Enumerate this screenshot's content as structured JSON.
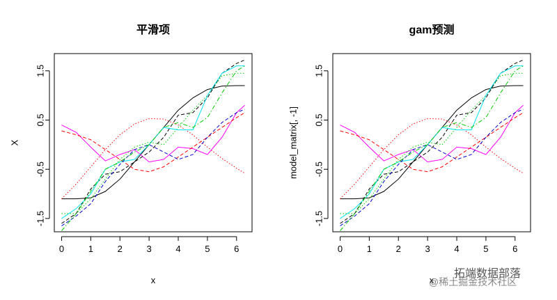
{
  "chart_data": [
    {
      "type": "line",
      "title": "平滑项",
      "xlabel": "x",
      "ylabel": "X",
      "x": [
        0,
        0.5,
        1,
        1.5,
        2,
        2.5,
        3,
        3.5,
        4,
        4.5,
        5,
        5.5,
        6,
        6.28
      ],
      "xlim": [
        -0.25,
        6.53
      ],
      "ylim": [
        -1.77,
        1.85
      ],
      "xticks": [
        0,
        1,
        2,
        3,
        4,
        5,
        6
      ],
      "yticks": [
        -1.5,
        -0.5,
        0.5,
        1.5
      ],
      "series": [
        {
          "color": "#000000",
          "line_style": "solid",
          "values": [
            -1.1,
            -1.1,
            -1.08,
            -0.95,
            -0.7,
            -0.35,
            0.0,
            0.35,
            0.7,
            0.95,
            1.12,
            1.19,
            1.2,
            1.2
          ]
        },
        {
          "color": "#ff0000",
          "line_style": "dotted",
          "values": [
            -1.1,
            -0.8,
            -0.45,
            -0.1,
            0.2,
            0.42,
            0.53,
            0.52,
            0.4,
            0.2,
            -0.05,
            -0.28,
            -0.48,
            -0.58
          ]
        },
        {
          "color": "#ff00ff",
          "line_style": "solid",
          "values": [
            0.4,
            0.25,
            -0.05,
            -0.33,
            -0.2,
            -0.1,
            -0.35,
            -0.3,
            -0.05,
            -0.08,
            -0.2,
            0.15,
            0.65,
            0.8
          ]
        },
        {
          "color": "#ff0000",
          "line_style": "dashed",
          "values": [
            0.28,
            0.2,
            0.1,
            -0.1,
            -0.3,
            -0.5,
            -0.55,
            -0.45,
            -0.25,
            -0.05,
            0.15,
            0.35,
            0.55,
            0.65
          ]
        },
        {
          "color": "#00cd00",
          "line_style": "dotted",
          "values": [
            -1.4,
            -1.4,
            -1.1,
            -0.7,
            -0.3,
            -0.05,
            0.05,
            0.0,
            0.35,
            0.7,
            1.0,
            1.4,
            1.45,
            1.45
          ]
        },
        {
          "color": "#000000",
          "line_style": "dashed",
          "values": [
            -1.6,
            -1.4,
            -0.9,
            -0.6,
            -0.55,
            -0.35,
            -0.15,
            0.15,
            0.6,
            0.65,
            0.95,
            1.45,
            1.65,
            1.72
          ]
        },
        {
          "color": "#00e5ee",
          "line_style": "solid",
          "values": [
            -1.5,
            -1.3,
            -1.0,
            -0.5,
            -0.35,
            -0.3,
            0.0,
            0.35,
            0.3,
            0.3,
            1.0,
            1.45,
            1.6,
            1.6
          ]
        },
        {
          "color": "#0000cd",
          "line_style": "dashed",
          "values": [
            -1.65,
            -1.45,
            -1.2,
            -0.75,
            -0.4,
            -0.1,
            0.0,
            -0.15,
            -0.3,
            -0.2,
            0.15,
            0.45,
            0.65,
            0.72
          ]
        },
        {
          "color": "#00cd00",
          "line_style": "dashdot",
          "values": [
            -1.75,
            -1.4,
            -0.95,
            -0.5,
            -0.35,
            -0.15,
            0.0,
            0.35,
            0.45,
            0.35,
            0.55,
            1.05,
            1.5,
            1.6
          ]
        }
      ]
    },
    {
      "type": "line",
      "title": "gam预测",
      "xlabel": "x",
      "ylabel": "model_matrix[, -1]",
      "x": [
        0,
        0.5,
        1,
        1.5,
        2,
        2.5,
        3,
        3.5,
        4,
        4.5,
        5,
        5.5,
        6,
        6.28
      ],
      "xlim": [
        -0.25,
        6.53
      ],
      "ylim": [
        -1.77,
        1.85
      ],
      "xticks": [
        0,
        1,
        2,
        3,
        4,
        5,
        6
      ],
      "yticks": [
        -1.5,
        -0.5,
        0.5,
        1.5
      ],
      "series": [
        {
          "color": "#000000",
          "line_style": "solid",
          "values": [
            -1.1,
            -1.1,
            -1.08,
            -0.95,
            -0.7,
            -0.35,
            0.0,
            0.35,
            0.7,
            0.95,
            1.12,
            1.19,
            1.2,
            1.2
          ]
        },
        {
          "color": "#ff0000",
          "line_style": "dotted",
          "values": [
            -1.1,
            -0.8,
            -0.45,
            -0.1,
            0.2,
            0.42,
            0.53,
            0.52,
            0.4,
            0.2,
            -0.05,
            -0.28,
            -0.48,
            -0.58
          ]
        },
        {
          "color": "#ff00ff",
          "line_style": "solid",
          "values": [
            0.4,
            0.25,
            -0.05,
            -0.33,
            -0.2,
            -0.1,
            -0.35,
            -0.3,
            -0.05,
            -0.08,
            -0.2,
            0.15,
            0.65,
            0.8
          ]
        },
        {
          "color": "#ff0000",
          "line_style": "dashed",
          "values": [
            0.28,
            0.2,
            0.1,
            -0.1,
            -0.3,
            -0.5,
            -0.55,
            -0.45,
            -0.25,
            -0.05,
            0.15,
            0.35,
            0.55,
            0.65
          ]
        },
        {
          "color": "#00cd00",
          "line_style": "dotted",
          "values": [
            -1.4,
            -1.4,
            -1.1,
            -0.7,
            -0.3,
            -0.05,
            0.05,
            0.0,
            0.35,
            0.7,
            1.0,
            1.4,
            1.45,
            1.45
          ]
        },
        {
          "color": "#000000",
          "line_style": "dashed",
          "values": [
            -1.6,
            -1.4,
            -0.9,
            -0.6,
            -0.55,
            -0.35,
            -0.15,
            0.15,
            0.6,
            0.65,
            0.95,
            1.45,
            1.65,
            1.72
          ]
        },
        {
          "color": "#00e5ee",
          "line_style": "solid",
          "values": [
            -1.5,
            -1.3,
            -1.0,
            -0.5,
            -0.35,
            -0.3,
            0.0,
            0.35,
            0.3,
            0.3,
            1.0,
            1.45,
            1.6,
            1.6
          ]
        },
        {
          "color": "#0000cd",
          "line_style": "dashed",
          "values": [
            -1.65,
            -1.45,
            -1.2,
            -0.75,
            -0.4,
            -0.1,
            0.0,
            -0.15,
            -0.3,
            -0.2,
            0.15,
            0.45,
            0.65,
            0.72
          ]
        },
        {
          "color": "#00cd00",
          "line_style": "dashdot",
          "values": [
            -1.75,
            -1.4,
            -0.95,
            -0.5,
            -0.35,
            -0.15,
            0.0,
            0.35,
            0.45,
            0.35,
            0.55,
            1.05,
            1.5,
            1.6
          ]
        }
      ]
    }
  ],
  "watermark": {
    "brand": "拓端数据部落",
    "site": "@稀土掘金技术社区"
  }
}
